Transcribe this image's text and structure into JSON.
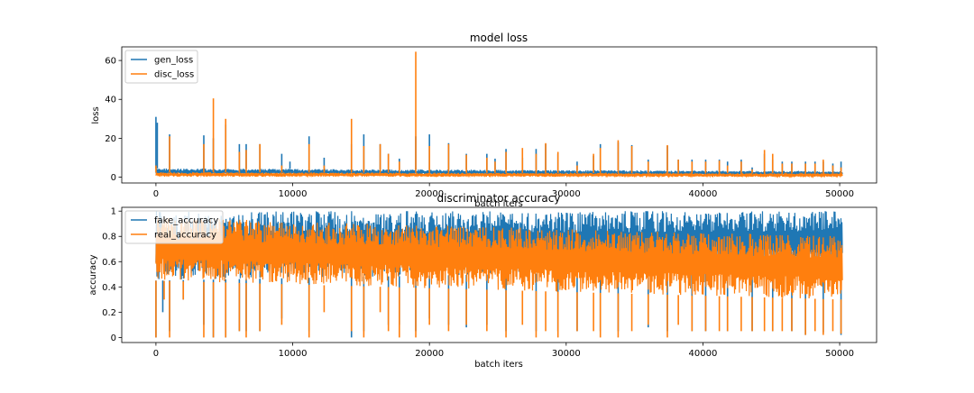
{
  "chart_data": [
    {
      "type": "line",
      "title": "model loss",
      "xlabel": "batch iters",
      "ylabel": "loss",
      "xlim": [
        -2500,
        52700
      ],
      "ylim": [
        -3,
        67
      ],
      "x_ticks": [
        0,
        10000,
        20000,
        30000,
        40000,
        50000
      ],
      "y_ticks": [
        0,
        20,
        40,
        60
      ],
      "legend_position": "upper left",
      "grid": false,
      "x_max": 50200,
      "series": [
        {
          "name": "gen_loss",
          "color": "#1f77b4",
          "band": [
            1.2,
            4.5
          ],
          "band_late": [
            1.0,
            3.0
          ],
          "spikes": [
            [
              0,
              31
            ],
            [
              100,
              28
            ],
            [
              1000,
              22
            ],
            [
              3500,
              21.5
            ],
            [
              4200,
              20
            ],
            [
              5100,
              27
            ],
            [
              6100,
              17
            ],
            [
              6600,
              17
            ],
            [
              7600,
              17
            ],
            [
              9200,
              12
            ],
            [
              9800,
              8
            ],
            [
              11200,
              21
            ],
            [
              12300,
              10
            ],
            [
              14300,
              17
            ],
            [
              15200,
              22
            ],
            [
              16400,
              17
            ],
            [
              17000,
              12
            ],
            [
              17800,
              9.5
            ],
            [
              19000,
              21
            ],
            [
              20000,
              22
            ],
            [
              21400,
              17.5
            ],
            [
              22700,
              12
            ],
            [
              24200,
              12
            ],
            [
              24800,
              9.5
            ],
            [
              25600,
              14.5
            ],
            [
              26800,
              10
            ],
            [
              27800,
              14.5
            ],
            [
              28500,
              17
            ],
            [
              29400,
              12
            ],
            [
              30800,
              8
            ],
            [
              32000,
              11
            ],
            [
              32500,
              17
            ],
            [
              33800,
              18
            ],
            [
              34800,
              16.5
            ],
            [
              36000,
              9
            ],
            [
              37400,
              16
            ],
            [
              38200,
              9
            ],
            [
              39200,
              9
            ],
            [
              40200,
              9
            ],
            [
              41200,
              9
            ],
            [
              41800,
              8
            ],
            [
              42800,
              9
            ],
            [
              43600,
              5
            ],
            [
              44500,
              12
            ],
            [
              45100,
              9
            ],
            [
              45800,
              8
            ],
            [
              46500,
              8
            ],
            [
              47500,
              8
            ],
            [
              48200,
              8
            ],
            [
              48800,
              8
            ],
            [
              49500,
              7
            ],
            [
              50100,
              8
            ]
          ]
        },
        {
          "name": "disc_loss",
          "color": "#ff7f0e",
          "band": [
            0.2,
            2.5
          ],
          "band_late": [
            0.2,
            1.8
          ],
          "spikes": [
            [
              0,
              6
            ],
            [
              1000,
              21
            ],
            [
              3500,
              17
            ],
            [
              4200,
              40.5
            ],
            [
              5100,
              30
            ],
            [
              6100,
              13
            ],
            [
              6600,
              14
            ],
            [
              7600,
              17
            ],
            [
              9200,
              6
            ],
            [
              11200,
              17
            ],
            [
              12300,
              6
            ],
            [
              14300,
              30
            ],
            [
              15200,
              16
            ],
            [
              16400,
              17
            ],
            [
              17000,
              12
            ],
            [
              17800,
              8
            ],
            [
              19000,
              64.5
            ],
            [
              20000,
              16
            ],
            [
              21400,
              17
            ],
            [
              22700,
              11.5
            ],
            [
              24200,
              10
            ],
            [
              24800,
              8
            ],
            [
              25600,
              13
            ],
            [
              26800,
              15
            ],
            [
              27800,
              12
            ],
            [
              28500,
              17.5
            ],
            [
              29400,
              13
            ],
            [
              30800,
              6
            ],
            [
              32000,
              12
            ],
            [
              32500,
              15
            ],
            [
              33800,
              19
            ],
            [
              34800,
              16
            ],
            [
              36000,
              8
            ],
            [
              37400,
              16.5
            ],
            [
              38200,
              9
            ],
            [
              39200,
              8
            ],
            [
              40200,
              8
            ],
            [
              41200,
              8.5
            ],
            [
              41800,
              6
            ],
            [
              42800,
              8
            ],
            [
              43600,
              4
            ],
            [
              44500,
              14
            ],
            [
              45100,
              12
            ],
            [
              45800,
              7
            ],
            [
              46500,
              7
            ],
            [
              47500,
              7
            ],
            [
              48200,
              7
            ],
            [
              48800,
              9
            ],
            [
              49500,
              6
            ],
            [
              50100,
              5
            ]
          ]
        }
      ]
    },
    {
      "type": "line",
      "title": "discriminator accuracy",
      "xlabel": "batch iters",
      "ylabel": "accuracy",
      "xlim": [
        -2500,
        52700
      ],
      "ylim": [
        -0.04,
        1.03
      ],
      "x_ticks": [
        0,
        10000,
        20000,
        30000,
        40000,
        50000
      ],
      "y_ticks": [
        0.0,
        0.2,
        0.4,
        0.6,
        0.8,
        1.0
      ],
      "legend_position": "upper left",
      "grid": false,
      "x_max": 50200,
      "series": [
        {
          "name": "fake_accuracy",
          "color": "#1f77b4",
          "band": [
            0.45,
            1.0
          ],
          "band_late": [
            0.55,
            1.0
          ],
          "dips": [
            [
              0,
              0.0
            ],
            [
              500,
              0.2
            ],
            [
              1000,
              0.05
            ],
            [
              2000,
              0.3
            ],
            [
              3500,
              0.1
            ],
            [
              4200,
              0.0
            ],
            [
              5100,
              0.0
            ],
            [
              6100,
              0.05
            ],
            [
              6600,
              0.05
            ],
            [
              7600,
              0.05
            ],
            [
              9200,
              0.15
            ],
            [
              11200,
              0.05
            ],
            [
              14300,
              0.0
            ],
            [
              15200,
              0.05
            ],
            [
              17000,
              0.1
            ],
            [
              17800,
              0.1
            ],
            [
              19000,
              0.05
            ],
            [
              20000,
              0.15
            ],
            [
              21400,
              0.1
            ],
            [
              22700,
              0.08
            ],
            [
              24200,
              0.1
            ],
            [
              25600,
              0.05
            ],
            [
              27800,
              0.05
            ],
            [
              29400,
              0.05
            ],
            [
              30800,
              0.05
            ],
            [
              32500,
              0.05
            ],
            [
              33800,
              0.05
            ],
            [
              36000,
              0.08
            ],
            [
              37400,
              0.05
            ],
            [
              39200,
              0.05
            ],
            [
              40200,
              0.05
            ],
            [
              41800,
              0.05
            ],
            [
              43600,
              0.05
            ],
            [
              45100,
              0.05
            ],
            [
              46500,
              0.05
            ],
            [
              47500,
              0.02
            ],
            [
              48800,
              0.04
            ],
            [
              50100,
              0.02
            ]
          ]
        },
        {
          "name": "real_accuracy",
          "color": "#ff7f0e",
          "band": [
            0.45,
            0.95
          ],
          "band_late": [
            0.3,
            0.8
          ],
          "dips": [
            [
              0,
              0.0
            ],
            [
              600,
              0.3
            ],
            [
              1000,
              0.0
            ],
            [
              2000,
              0.3
            ],
            [
              3500,
              0.0
            ],
            [
              4200,
              0.0
            ],
            [
              5100,
              0.0
            ],
            [
              6100,
              0.05
            ],
            [
              6600,
              0.0
            ],
            [
              7600,
              0.05
            ],
            [
              9200,
              0.1
            ],
            [
              11200,
              0.0
            ],
            [
              12300,
              0.2
            ],
            [
              14300,
              0.05
            ],
            [
              15200,
              0.0
            ],
            [
              16400,
              0.2
            ],
            [
              17000,
              0.05
            ],
            [
              17800,
              0.0
            ],
            [
              19000,
              0.0
            ],
            [
              20000,
              0.1
            ],
            [
              21400,
              0.05
            ],
            [
              22700,
              0.1
            ],
            [
              24200,
              0.05
            ],
            [
              25600,
              0.0
            ],
            [
              26800,
              0.1
            ],
            [
              27800,
              0.0
            ],
            [
              28500,
              0.05
            ],
            [
              29400,
              0.0
            ],
            [
              30800,
              0.05
            ],
            [
              32000,
              0.05
            ],
            [
              32500,
              0.0
            ],
            [
              33800,
              0.0
            ],
            [
              34800,
              0.05
            ],
            [
              36000,
              0.1
            ],
            [
              37400,
              0.0
            ],
            [
              38200,
              0.1
            ],
            [
              39200,
              0.05
            ],
            [
              40200,
              0.05
            ],
            [
              41200,
              0.05
            ],
            [
              41800,
              0.05
            ],
            [
              42800,
              0.05
            ],
            [
              43600,
              0.05
            ],
            [
              44500,
              0.05
            ],
            [
              45100,
              0.05
            ],
            [
              45800,
              0.05
            ],
            [
              46500,
              0.05
            ],
            [
              47500,
              0.02
            ],
            [
              48200,
              0.05
            ],
            [
              48800,
              0.02
            ],
            [
              49500,
              0.05
            ],
            [
              50100,
              0.03
            ]
          ]
        }
      ]
    }
  ]
}
